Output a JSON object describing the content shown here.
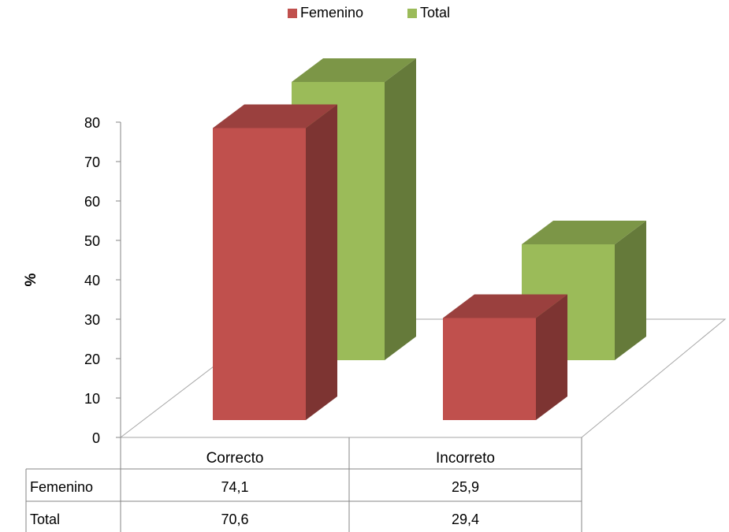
{
  "chart_data": {
    "type": "bar",
    "title": "",
    "xlabel": "",
    "ylabel": "%",
    "ylim": [
      0,
      80
    ],
    "yticks": [
      "0",
      "10",
      "20",
      "30",
      "40",
      "50",
      "60",
      "70",
      "80"
    ],
    "categories": [
      "Correcto",
      "Incorreto"
    ],
    "series": [
      {
        "name": "Femenino",
        "values": [
          74.1,
          25.9
        ],
        "labels": [
          "74,1",
          "25,9"
        ],
        "color": "#c0504d"
      },
      {
        "name": "Total",
        "values": [
          70.6,
          29.4
        ],
        "labels": [
          "70,6",
          "29,4"
        ],
        "color": "#9bbb59"
      }
    ],
    "legend": "top",
    "grid": false,
    "three_d": true,
    "data_table": true
  }
}
